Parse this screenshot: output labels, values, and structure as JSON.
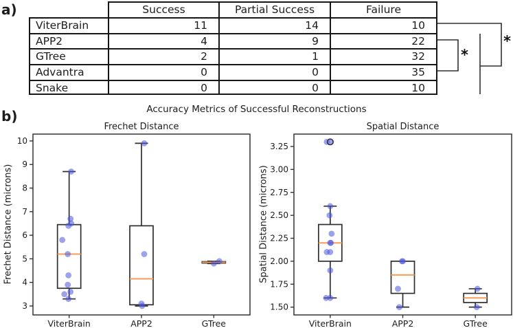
{
  "panel_a": {
    "label": "a)",
    "table": {
      "columns": [
        "Success",
        "Partial Success",
        "Failure"
      ],
      "rows": [
        {
          "name": "ViterBrain",
          "values": [
            "11",
            "14",
            "10"
          ]
        },
        {
          "name": "APP2",
          "values": [
            "4",
            "9",
            "22"
          ]
        },
        {
          "name": "GTree",
          "values": [
            "2",
            "1",
            "32"
          ]
        },
        {
          "name": "Advantra",
          "values": [
            "0",
            "0",
            "35"
          ]
        },
        {
          "name": "Snake",
          "values": [
            "0",
            "0",
            "10"
          ]
        }
      ]
    },
    "significance_stars": [
      "*",
      "*"
    ]
  },
  "panel_b": {
    "label": "b)",
    "suptitle": "Accuracy Metrics of Successful Reconstructions"
  },
  "colors": {
    "point_fill": "#4a55dc",
    "point_opacity": 0.55,
    "median": "#f89b54",
    "box_stroke": "#2e2e2e",
    "axis": "#333333"
  },
  "chart_data": [
    {
      "type": "boxplot",
      "title": "Frechet Distance",
      "ylabel": "Frechet Distance (microns)",
      "categories": [
        "ViterBrain",
        "APP2",
        "GTree"
      ],
      "ytick_labels": [
        "3",
        "4",
        "5",
        "6",
        "7",
        "8",
        "9",
        "10"
      ],
      "ylim": [
        2.62,
        10.29
      ],
      "grid": false,
      "legend": null,
      "boxes": [
        {
          "category": "ViterBrain",
          "q1": 3.75,
          "median": 5.2,
          "q3": 6.45,
          "whisker_low": 3.3,
          "whisker_high": 8.7,
          "outliers": []
        },
        {
          "category": "APP2",
          "q1": 3.05,
          "median": 4.15,
          "q3": 6.4,
          "whisker_low": 3.0,
          "whisker_high": 9.9,
          "outliers": []
        },
        {
          "category": "GTree",
          "q1": 4.82,
          "median": 4.85,
          "q3": 4.88,
          "whisker_low": 4.8,
          "whisker_high": 4.9,
          "outliers": []
        }
      ],
      "points": [
        {
          "cat": 0,
          "v": 8.7,
          "dx": 3
        },
        {
          "cat": 0,
          "v": 6.7,
          "dx": 2
        },
        {
          "cat": 0,
          "v": 6.5,
          "dx": 3
        },
        {
          "cat": 0,
          "v": 6.4,
          "dx": -1
        },
        {
          "cat": 0,
          "v": 5.8,
          "dx": -10
        },
        {
          "cat": 0,
          "v": 5.2,
          "dx": -2
        },
        {
          "cat": 0,
          "v": 4.3,
          "dx": -1
        },
        {
          "cat": 0,
          "v": 3.9,
          "dx": -2
        },
        {
          "cat": 0,
          "v": 3.6,
          "dx": 2
        },
        {
          "cat": 0,
          "v": 3.5,
          "dx": -7
        },
        {
          "cat": 0,
          "v": 3.3,
          "dx": -1
        },
        {
          "cat": 1,
          "v": 9.9,
          "dx": 4
        },
        {
          "cat": 1,
          "v": 5.2,
          "dx": 4
        },
        {
          "cat": 1,
          "v": 3.1,
          "dx": 0
        },
        {
          "cat": 1,
          "v": 3.0,
          "dx": 1
        },
        {
          "cat": 2,
          "v": 4.9,
          "dx": 8
        },
        {
          "cat": 2,
          "v": 4.8,
          "dx": 0
        }
      ]
    },
    {
      "type": "boxplot",
      "title": "Spatial Distance",
      "ylabel": "Spatial Distance (microns)",
      "categories": [
        "ViterBrain",
        "APP2",
        "GTree"
      ],
      "ytick_labels": [
        "1.50",
        "1.75",
        "2.00",
        "2.25",
        "2.50",
        "2.75",
        "3.00",
        "3.25"
      ],
      "ylim": [
        1.415,
        3.385
      ],
      "grid": false,
      "legend": null,
      "boxes": [
        {
          "category": "ViterBrain",
          "q1": 2.0,
          "median": 2.2,
          "q3": 2.4,
          "whisker_low": 1.6,
          "whisker_high": 2.6,
          "outliers": [
            3.3
          ]
        },
        {
          "category": "APP2",
          "q1": 1.65,
          "median": 1.85,
          "q3": 2.0,
          "whisker_low": 1.5,
          "whisker_high": 2.0,
          "outliers": []
        },
        {
          "category": "GTree",
          "q1": 1.55,
          "median": 1.6,
          "q3": 1.65,
          "whisker_low": 1.5,
          "whisker_high": 1.7,
          "outliers": []
        }
      ],
      "points": [
        {
          "cat": 0,
          "v": 3.3,
          "dx": -5
        },
        {
          "cat": 0,
          "v": 3.3,
          "dx": 1
        },
        {
          "cat": 0,
          "v": 2.6,
          "dx": 0
        },
        {
          "cat": 0,
          "v": 2.5,
          "dx": -1
        },
        {
          "cat": 0,
          "v": 2.3,
          "dx": 2
        },
        {
          "cat": 0,
          "v": 2.2,
          "dx": 1
        },
        {
          "cat": 0,
          "v": 2.2,
          "dx": 0
        },
        {
          "cat": 0,
          "v": 2.1,
          "dx": -5
        },
        {
          "cat": 0,
          "v": 2.1,
          "dx": 0
        },
        {
          "cat": 0,
          "v": 1.9,
          "dx": 0
        },
        {
          "cat": 0,
          "v": 1.6,
          "dx": -6
        },
        {
          "cat": 0,
          "v": 1.6,
          "dx": 0
        },
        {
          "cat": 1,
          "v": 2.0,
          "dx": -1
        },
        {
          "cat": 1,
          "v": 2.0,
          "dx": 0
        },
        {
          "cat": 1,
          "v": 1.7,
          "dx": -7
        },
        {
          "cat": 1,
          "v": 1.5,
          "dx": -5
        },
        {
          "cat": 2,
          "v": 1.7,
          "dx": 3
        },
        {
          "cat": 2,
          "v": 1.5,
          "dx": 2
        }
      ]
    }
  ]
}
